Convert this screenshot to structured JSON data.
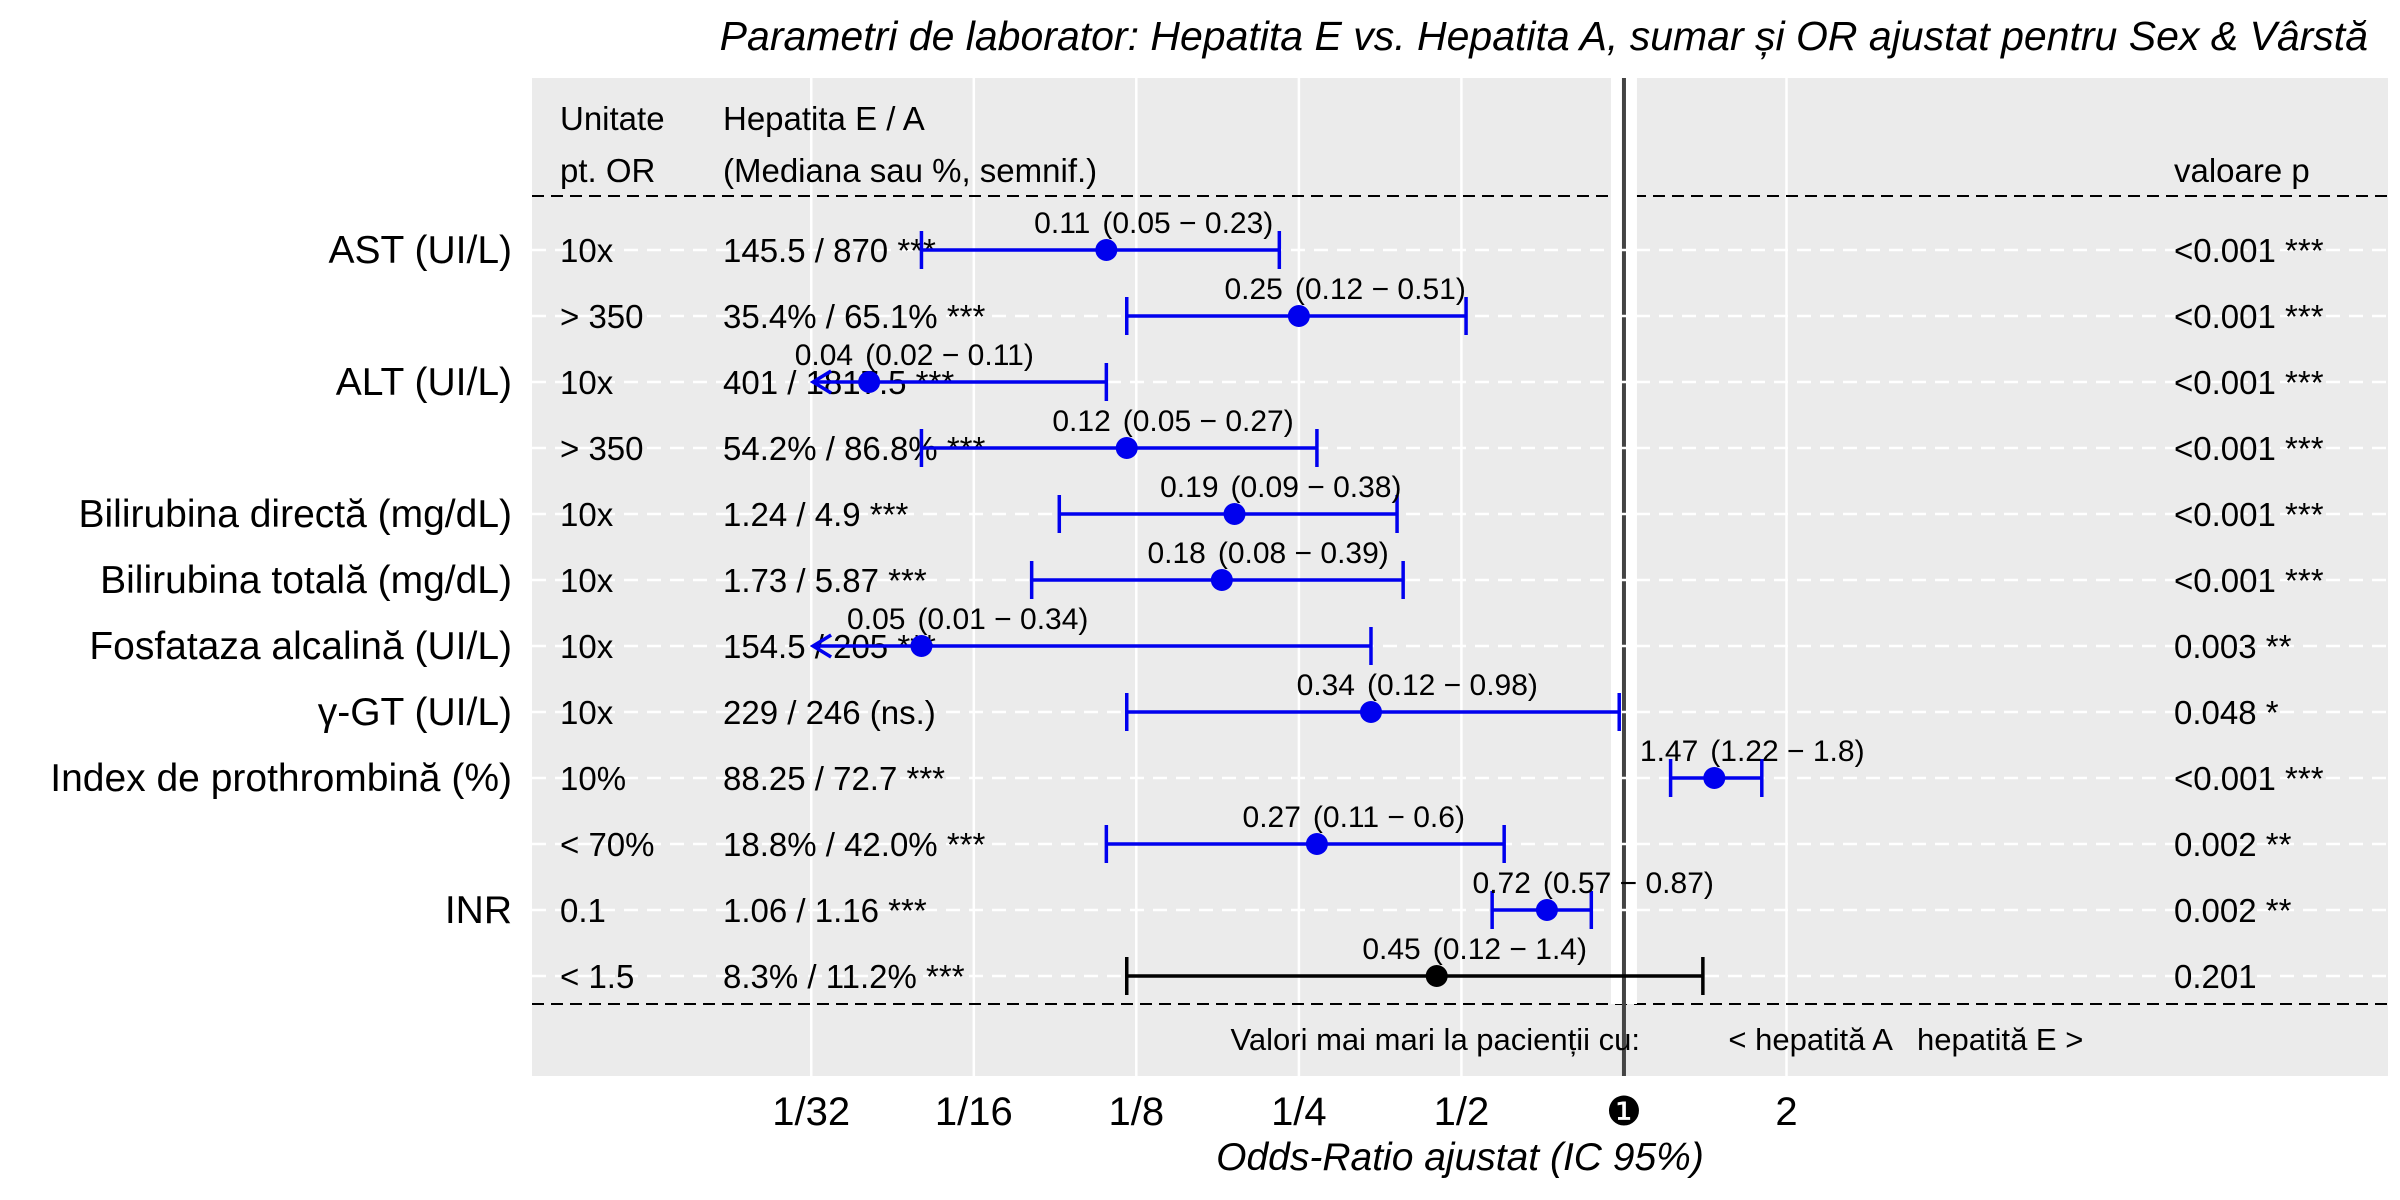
{
  "chart_data": {
    "type": "forest",
    "title": "Parametri de laborator: Hepatita E vs. Hepatita A, sumar și OR ajustat pentru Sex & Vârstă",
    "xlabel": "Odds-Ratio ajustat (IC 95%)",
    "x_scale": "log2",
    "x_ticks": [
      {
        "value": 0.03125,
        "label": "1/32"
      },
      {
        "value": 0.0625,
        "label": "1/16"
      },
      {
        "value": 0.125,
        "label": "1/8"
      },
      {
        "value": 0.25,
        "label": "1/4"
      },
      {
        "value": 0.5,
        "label": "1/2"
      },
      {
        "value": 1,
        "label": "❶"
      },
      {
        "value": 2,
        "label": "2"
      }
    ],
    "xlim": [
      0.0095,
      26
    ],
    "reference_line": 1,
    "header": {
      "unit_line1": "Unitate",
      "unit_line2": "pt. OR",
      "summary_line1": "Hepatita E / A",
      "summary_line2": "(Mediana sau %, semnif.)",
      "p_header": "valoare p"
    },
    "footer": {
      "prefix": "Valori mai mari la pacienții cu:",
      "left": "< hepatită A",
      "right": "hepatită E >"
    },
    "rows": [
      {
        "label": "AST (UI/L)",
        "unit": "10x",
        "summary": "145.5 / 870 ***",
        "or": 0.11,
        "lo": 0.05,
        "hi": 0.23,
        "or_label": "0.11",
        "ci_label": "(0.05 − 0.23)",
        "p": "<0.001 ***",
        "significant": true,
        "arrow_left": false
      },
      {
        "label": "",
        "unit": "> 350",
        "summary": "35.4% / 65.1% ***",
        "or": 0.25,
        "lo": 0.12,
        "hi": 0.51,
        "or_label": "0.25",
        "ci_label": "(0.12 − 0.51)",
        "p": "<0.001 ***",
        "significant": true,
        "arrow_left": false
      },
      {
        "label": "ALT (UI/L)",
        "unit": "10x",
        "summary": "401 / 1817.5 ***",
        "or": 0.04,
        "lo": 0.02,
        "hi": 0.11,
        "or_label": "0.04",
        "ci_label": "(0.02 − 0.11)",
        "p": "<0.001 ***",
        "significant": true,
        "arrow_left": true
      },
      {
        "label": "",
        "unit": "> 350",
        "summary": "54.2% / 86.8% ***",
        "or": 0.12,
        "lo": 0.05,
        "hi": 0.27,
        "or_label": "0.12",
        "ci_label": "(0.05 − 0.27)",
        "p": "<0.001 ***",
        "significant": true,
        "arrow_left": false
      },
      {
        "label": "Bilirubina directă (mg/dL)",
        "unit": "10x",
        "summary": "1.24 / 4.9 ***",
        "or": 0.19,
        "lo": 0.09,
        "hi": 0.38,
        "or_label": "0.19",
        "ci_label": "(0.09 − 0.38)",
        "p": "<0.001 ***",
        "significant": true,
        "arrow_left": false
      },
      {
        "label": "Bilirubina totală (mg/dL)",
        "unit": "10x",
        "summary": "1.73 / 5.87 ***",
        "or": 0.18,
        "lo": 0.08,
        "hi": 0.39,
        "or_label": "0.18",
        "ci_label": "(0.08 − 0.39)",
        "p": "<0.001 ***",
        "significant": true,
        "arrow_left": false
      },
      {
        "label": "Fosfataza alcalină (UI/L)",
        "unit": "10x",
        "summary": "154.5 / 205 ***",
        "or": 0.05,
        "lo": 0.01,
        "hi": 0.34,
        "or_label": "0.05",
        "ci_label": "(0.01 − 0.34)",
        "p": "0.003 **",
        "significant": true,
        "arrow_left": true
      },
      {
        "label": "γ-GT (UI/L)",
        "unit": "10x",
        "summary": "229 / 246 (ns.)",
        "or": 0.34,
        "lo": 0.12,
        "hi": 0.98,
        "or_label": "0.34",
        "ci_label": "(0.12 − 0.98)",
        "p": "0.048 *",
        "significant": true,
        "arrow_left": false
      },
      {
        "label": "Index de prothrombină (%)",
        "unit": "10%",
        "summary": "88.25 / 72.7 ***",
        "or": 1.47,
        "lo": 1.22,
        "hi": 1.8,
        "or_label": "1.47",
        "ci_label": "(1.22 − 1.8)",
        "p": "<0.001 ***",
        "significant": true,
        "arrow_left": false
      },
      {
        "label": "",
        "unit": "< 70%",
        "summary": "18.8% / 42.0% ***",
        "or": 0.27,
        "lo": 0.11,
        "hi": 0.6,
        "or_label": "0.27",
        "ci_label": "(0.11 − 0.6)",
        "p": "0.002 **",
        "significant": true,
        "arrow_left": false
      },
      {
        "label": "INR",
        "unit": "0.1",
        "summary": "1.06 / 1.16 ***",
        "or": 0.72,
        "lo": 0.57,
        "hi": 0.87,
        "or_label": "0.72",
        "ci_label": "(0.57 − 0.87)",
        "p": "0.002 **",
        "significant": true,
        "arrow_left": false
      },
      {
        "label": "",
        "unit": "< 1.5",
        "summary": "8.3% / 11.2% ***",
        "or": 0.45,
        "lo": 0.12,
        "hi": 1.4,
        "or_label": "0.45",
        "ci_label": "(0.12 − 1.4)",
        "p": "0.201",
        "significant": false,
        "arrow_left": false
      }
    ],
    "colors": {
      "significant": "#0000ee",
      "nonsignificant": "#000000",
      "panel": "#ebebeb",
      "grid": "#ffffff",
      "reference": "#444444"
    }
  }
}
